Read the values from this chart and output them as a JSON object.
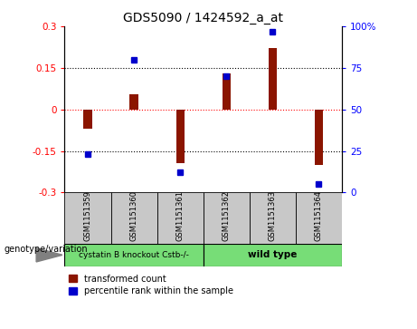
{
  "title": "GDS5090 / 1424592_a_at",
  "samples": [
    "GSM1151359",
    "GSM1151360",
    "GSM1151361",
    "GSM1151362",
    "GSM1151363",
    "GSM1151364"
  ],
  "bar_values": [
    -0.07,
    0.055,
    -0.195,
    0.13,
    0.22,
    -0.2
  ],
  "percentile_values": [
    23,
    80,
    12,
    70,
    97,
    5
  ],
  "group_bg_color": "#77DD77",
  "sample_box_color": "#C8C8C8",
  "bar_color": "#8B1500",
  "dot_color": "#0000CC",
  "ylim_left": [
    -0.3,
    0.3
  ],
  "ylim_right": [
    0,
    100
  ],
  "yticks_left": [
    -0.3,
    -0.15,
    0,
    0.15,
    0.3
  ],
  "yticks_right": [
    0,
    25,
    50,
    75,
    100
  ],
  "genotype_label": "genotype/variation",
  "legend_bar": "transformed count",
  "legend_dot": "percentile rank within the sample",
  "group1_label": "cystatin B knockout Cstb-/-",
  "group2_label": "wild type",
  "bar_width": 0.18
}
